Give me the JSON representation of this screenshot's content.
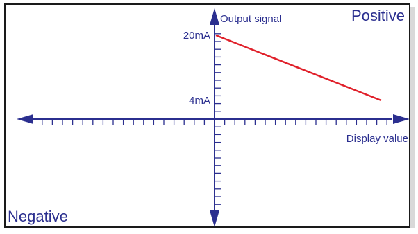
{
  "chart_data": {
    "type": "line",
    "labels": {
      "positive": "Positive",
      "negative": "Negative",
      "y_axis": "Output signal",
      "x_axis": "Display value"
    },
    "y_ticks": [
      {
        "label": "20mA",
        "value": 20
      },
      {
        "label": "4mA",
        "value": 4
      }
    ],
    "series": [
      {
        "x": [
          0,
          1
        ],
        "y": [
          20,
          4
        ]
      }
    ],
    "colors": {
      "axis": "#2b2f8f",
      "line": "#e0202a",
      "frame": "#1a1a1a",
      "text": "#2b2f8f"
    }
  }
}
